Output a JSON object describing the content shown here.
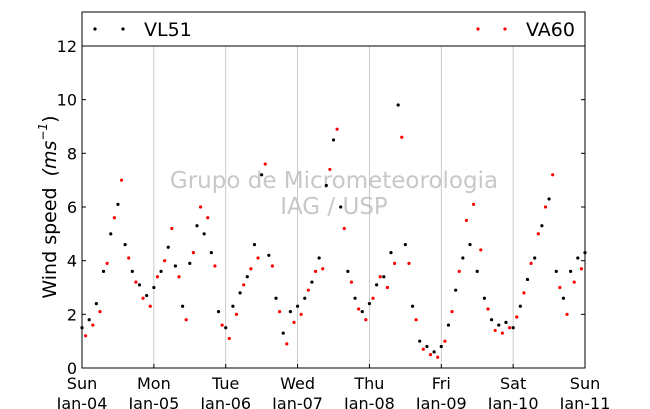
{
  "watermark": {
    "line1": "Grupo de Micrometeorologia",
    "line2": "IAG / USP"
  },
  "chart_data": {
    "type": "scatter",
    "ylabel_main": "Wind speed",
    "ylabel_units": "(ms",
    "ylabel_exp": "−1",
    "ylim": [
      0,
      12
    ],
    "yticks": [
      "0",
      "2",
      "4",
      "6",
      "8",
      "10",
      "12"
    ],
    "xlim": [
      0,
      7
    ],
    "xticks": [
      {
        "day": "Sun",
        "date": "Jan-04"
      },
      {
        "day": "Mon",
        "date": "Jan-05"
      },
      {
        "day": "Tue",
        "date": "Jan-06"
      },
      {
        "day": "Wed",
        "date": "Jan-07"
      },
      {
        "day": "Thu",
        "date": "Jan-08"
      },
      {
        "day": "Fri",
        "date": "Jan-09"
      },
      {
        "day": "Sat",
        "date": "Jan-10"
      },
      {
        "day": "Sun",
        "date": "Jan-11"
      }
    ],
    "grid": "vertical",
    "legend": "top",
    "series": [
      {
        "name": "VL51",
        "color": "#000000",
        "x": [
          0.0,
          0.1,
          0.2,
          0.3,
          0.4,
          0.5,
          0.6,
          0.7,
          0.8,
          0.9,
          1.0,
          1.1,
          1.2,
          1.3,
          1.4,
          1.5,
          1.6,
          1.7,
          1.8,
          1.9,
          2.0,
          2.1,
          2.2,
          2.3,
          2.4,
          2.5,
          2.6,
          2.7,
          2.8,
          2.9,
          3.0,
          3.1,
          3.2,
          3.3,
          3.4,
          3.5,
          3.6,
          3.7,
          3.8,
          3.9,
          4.0,
          4.1,
          4.2,
          4.3,
          4.4,
          4.5,
          4.6,
          4.7,
          4.8,
          4.9,
          5.0,
          5.1,
          5.2,
          5.3,
          5.4,
          5.5,
          5.6,
          5.7,
          5.8,
          5.9,
          6.0,
          6.1,
          6.2,
          6.3,
          6.4,
          6.5,
          6.6,
          6.7,
          6.8,
          6.9,
          7.0
        ],
        "y": [
          1.5,
          1.8,
          2.4,
          3.6,
          5.0,
          6.1,
          4.6,
          3.6,
          3.1,
          2.7,
          3.0,
          3.6,
          4.5,
          3.8,
          2.3,
          3.9,
          5.3,
          5.0,
          4.3,
          2.1,
          1.5,
          2.3,
          2.8,
          3.4,
          4.6,
          7.2,
          4.2,
          2.6,
          1.3,
          2.1,
          2.3,
          2.6,
          3.2,
          4.1,
          6.8,
          8.5,
          6.0,
          3.6,
          2.6,
          2.1,
          2.4,
          3.1,
          3.4,
          4.3,
          9.8,
          4.6,
          2.3,
          1.0,
          0.8,
          0.6,
          0.8,
          1.6,
          2.9,
          4.1,
          4.6,
          3.6,
          2.6,
          1.8,
          1.6,
          1.7,
          1.5,
          2.3,
          3.3,
          4.1,
          5.3,
          6.3,
          3.6,
          2.6,
          3.6,
          4.1,
          4.3
        ]
      },
      {
        "name": "VA60",
        "color": "#ff0000",
        "x": [
          0.05,
          0.15,
          0.25,
          0.35,
          0.45,
          0.55,
          0.65,
          0.75,
          0.85,
          0.95,
          1.05,
          1.15,
          1.25,
          1.35,
          1.45,
          1.55,
          1.65,
          1.75,
          1.85,
          1.95,
          2.05,
          2.15,
          2.25,
          2.35,
          2.45,
          2.55,
          2.65,
          2.75,
          2.85,
          2.95,
          3.05,
          3.15,
          3.25,
          3.35,
          3.45,
          3.55,
          3.65,
          3.75,
          3.85,
          3.95,
          4.05,
          4.15,
          4.25,
          4.35,
          4.45,
          4.55,
          4.65,
          4.75,
          4.85,
          4.95,
          5.05,
          5.15,
          5.25,
          5.35,
          5.45,
          5.55,
          5.65,
          5.75,
          5.85,
          5.95,
          6.05,
          6.15,
          6.25,
          6.35,
          6.45,
          6.55,
          6.65,
          6.75,
          6.85,
          6.95
        ],
        "y": [
          1.2,
          1.6,
          2.1,
          3.9,
          5.6,
          7.0,
          4.1,
          3.2,
          2.6,
          2.3,
          3.4,
          4.0,
          5.2,
          3.4,
          1.8,
          4.3,
          6.0,
          5.6,
          3.8,
          1.6,
          1.1,
          2.0,
          3.1,
          3.7,
          4.1,
          7.6,
          3.8,
          2.1,
          0.9,
          1.7,
          2.0,
          2.9,
          3.6,
          3.7,
          7.4,
          8.9,
          5.2,
          3.2,
          2.2,
          1.8,
          2.6,
          3.4,
          3.0,
          3.9,
          8.6,
          3.9,
          1.8,
          0.7,
          0.5,
          0.4,
          1.0,
          2.1,
          3.6,
          5.5,
          6.1,
          4.4,
          2.2,
          1.4,
          1.3,
          1.5,
          1.9,
          2.8,
          3.9,
          5.0,
          6.0,
          7.2,
          3.0,
          2.0,
          3.2,
          3.7
        ]
      }
    ]
  }
}
